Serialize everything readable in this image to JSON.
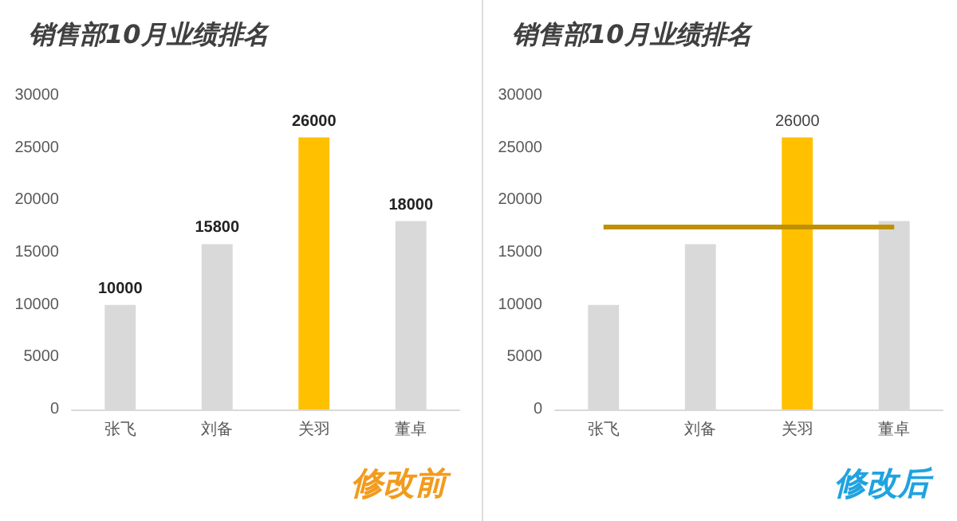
{
  "chart_data": [
    {
      "type": "bar",
      "title": "销售部10月业绩排名",
      "categories": [
        "张飞",
        "刘备",
        "关羽",
        "董卓"
      ],
      "values": [
        10000,
        15800,
        26000,
        18000
      ],
      "colors": [
        "#d9d9d9",
        "#d9d9d9",
        "#ffc000",
        "#d9d9d9"
      ],
      "ylim": [
        0,
        30000
      ],
      "yticks": [
        0,
        5000,
        10000,
        15000,
        20000,
        25000,
        30000
      ],
      "data_labels": true,
      "annotations": [
        "修改前"
      ]
    },
    {
      "type": "bar",
      "title": "销售部10月业绩排名",
      "categories": [
        "张飞",
        "刘备",
        "关羽",
        "董卓"
      ],
      "values": [
        10000,
        15800,
        26000,
        18000
      ],
      "colors": [
        "#d9d9d9",
        "#d9d9d9",
        "#ffc000",
        "#d9d9d9"
      ],
      "value_labels": [
        null,
        null,
        "26000",
        null
      ],
      "ylim": [
        0,
        30000
      ],
      "yticks": [
        0,
        5000,
        10000,
        15000,
        20000,
        25000,
        30000
      ],
      "ref_lines": [
        {
          "axis": "y",
          "value": 17450,
          "color": "#bf9000"
        }
      ],
      "annotations": [
        "修改后"
      ]
    }
  ]
}
